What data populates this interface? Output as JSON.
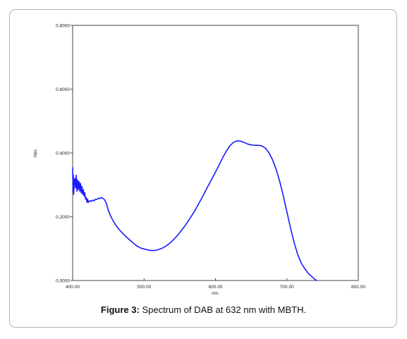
{
  "caption": {
    "label": "Figure 3:",
    "text": " Spectrum of DAB at 632 nm with MBTH."
  },
  "chart_data": {
    "type": "line",
    "xlabel": "nm.",
    "ylabel": "Abs.",
    "xlim": [
      400,
      800
    ],
    "ylim": [
      0,
      0.8
    ],
    "x_ticks": [
      400,
      500,
      600,
      700,
      800
    ],
    "x_tick_labels": [
      "400.00",
      "500.00",
      "600.00",
      "700.00",
      "800.00"
    ],
    "y_ticks": [
      0,
      0.2,
      0.4,
      0.6,
      0.8
    ],
    "y_tick_labels": [
      "0.0000",
      "0.2000",
      "0.4000",
      "0.6000",
      "0.8000"
    ],
    "grid": false,
    "line_color": "#1a1aff",
    "series": [
      {
        "x": [
          400.0,
          400.5,
          401.0,
          401.5,
          402.0,
          403.0,
          404.0,
          405.0,
          406.0,
          407.0,
          408.0,
          409.0,
          410.0,
          411.0,
          412.0,
          413.0,
          414.0,
          415.0,
          416.0,
          417.0,
          418.0,
          419.0,
          420.0,
          421.0,
          422.0,
          424.0,
          426.0,
          428.0,
          430.0,
          432.0,
          434.0,
          436.0,
          438.0,
          440.0,
          442.0,
          444.0,
          446.0,
          448.0,
          450.0,
          453.0,
          456.0,
          460.0,
          465.0,
          470.0,
          475.0,
          480.0,
          485.0,
          490.0,
          495.0,
          500.0,
          505.0,
          510.0,
          515.0,
          520.0,
          525.0,
          530.0,
          535.0,
          540.0,
          545.0,
          550.0,
          560.0,
          570.0,
          580.0,
          590.0,
          600.0,
          605.0,
          610.0,
          615.0,
          620.0,
          625.0,
          630.0,
          635.0,
          640.0,
          645.0,
          650.0,
          655.0,
          660.0,
          665.0,
          670.0,
          675.0,
          680.0,
          685.0,
          690.0,
          695.0,
          700.0,
          705.0,
          710.0,
          715.0,
          720.0,
          725.0,
          730.0,
          735.0,
          740.0,
          742.0
        ],
        "y": [
          0.355,
          0.28,
          0.33,
          0.27,
          0.3,
          0.32,
          0.29,
          0.33,
          0.28,
          0.315,
          0.285,
          0.31,
          0.28,
          0.305,
          0.275,
          0.295,
          0.27,
          0.285,
          0.265,
          0.275,
          0.255,
          0.26,
          0.245,
          0.255,
          0.245,
          0.25,
          0.248,
          0.252,
          0.25,
          0.255,
          0.254,
          0.258,
          0.257,
          0.26,
          0.258,
          0.255,
          0.248,
          0.236,
          0.22,
          0.203,
          0.19,
          0.175,
          0.16,
          0.148,
          0.137,
          0.127,
          0.117,
          0.108,
          0.102,
          0.099,
          0.096,
          0.094,
          0.094,
          0.097,
          0.101,
          0.107,
          0.115,
          0.125,
          0.137,
          0.15,
          0.18,
          0.215,
          0.255,
          0.298,
          0.34,
          0.362,
          0.385,
          0.405,
          0.422,
          0.433,
          0.438,
          0.437,
          0.433,
          0.428,
          0.425,
          0.424,
          0.424,
          0.422,
          0.415,
          0.4,
          0.378,
          0.348,
          0.31,
          0.265,
          0.215,
          0.165,
          0.12,
          0.082,
          0.055,
          0.037,
          0.022,
          0.012,
          0.002,
          0.0
        ]
      }
    ]
  }
}
